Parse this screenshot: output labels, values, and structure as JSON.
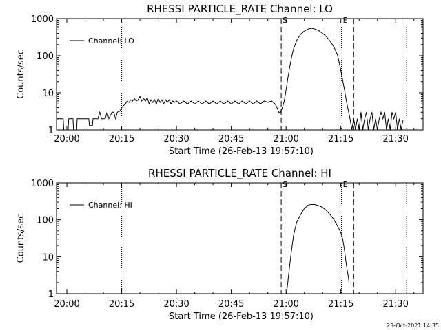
{
  "timestamp": "23-Oct-2021 14:35",
  "chart_data": [
    {
      "type": "line",
      "title": "RHESSI PARTICLE_RATE Channel: LO",
      "xlabel": "Start Time (26-Feb-13 19:57:10)",
      "ylabel": "Counts/sec",
      "y_scale": "log",
      "ylim": [
        1,
        1000
      ],
      "xlim": [
        "19:57:10",
        "21:37:30"
      ],
      "x_ticks": [
        "20:00",
        "20:15",
        "20:30",
        "20:45",
        "21:00",
        "21:15",
        "21:30"
      ],
      "y_ticks": [
        "1",
        "10",
        "100",
        "1000"
      ],
      "legend": "top-left",
      "grid": false,
      "series": [
        {
          "name": "Channel: LO",
          "color": "#000000",
          "points": [
            [
              "19:57:10",
              2
            ],
            [
              "19:59:00",
              2
            ],
            [
              "19:59:10",
              1
            ],
            [
              "20:00:20",
              1
            ],
            [
              "20:00:30",
              2
            ],
            [
              "20:01:40",
              2
            ],
            [
              "20:01:50",
              1
            ],
            [
              "20:02:40",
              1
            ],
            [
              "20:02:50",
              2
            ],
            [
              "20:05:30",
              2
            ],
            [
              "20:06:00",
              2
            ],
            [
              "20:06:10",
              1.3
            ],
            [
              "20:07:00",
              1.3
            ],
            [
              "20:07:10",
              2
            ],
            [
              "20:08:30",
              2
            ],
            [
              "20:09:00",
              3
            ],
            [
              "20:09:30",
              2
            ],
            [
              "20:10:30",
              2
            ],
            [
              "20:11:00",
              3
            ],
            [
              "20:11:30",
              2
            ],
            [
              "20:12:20",
              3
            ],
            [
              "20:12:50",
              3
            ],
            [
              "20:13:20",
              2
            ],
            [
              "20:13:50",
              3
            ],
            [
              "20:14:30",
              3.2
            ],
            [
              "20:15:00",
              4
            ],
            [
              "20:15:30",
              4.5
            ],
            [
              "20:16:00",
              5
            ],
            [
              "20:16:30",
              6
            ],
            [
              "20:17:00",
              5.5
            ],
            [
              "20:17:30",
              6.5
            ],
            [
              "20:18:00",
              6
            ],
            [
              "20:18:30",
              7
            ],
            [
              "20:19:00",
              6
            ],
            [
              "20:19:30",
              6.5
            ],
            [
              "20:20:00",
              8
            ],
            [
              "20:20:30",
              6
            ],
            [
              "20:21:00",
              7
            ],
            [
              "20:21:30",
              6
            ],
            [
              "20:22:00",
              7.5
            ],
            [
              "20:22:30",
              5
            ],
            [
              "20:23:00",
              6.5
            ],
            [
              "20:23:30",
              5.5
            ],
            [
              "20:24:00",
              6.5
            ],
            [
              "20:24:30",
              5
            ],
            [
              "20:25:00",
              7
            ],
            [
              "20:25:30",
              5.5
            ],
            [
              "20:26:00",
              6.5
            ],
            [
              "20:26:30",
              5
            ],
            [
              "20:27:00",
              6.5
            ],
            [
              "20:27:30",
              5.5
            ],
            [
              "20:28:00",
              6.5
            ],
            [
              "20:28:30",
              5
            ],
            [
              "20:29:00",
              6
            ],
            [
              "20:29:30",
              5.5
            ],
            [
              "20:30:00",
              6
            ],
            [
              "20:31:00",
              5
            ],
            [
              "20:32:00",
              6
            ],
            [
              "20:33:00",
              5
            ],
            [
              "20:34:00",
              6
            ],
            [
              "20:35:00",
              5
            ],
            [
              "20:36:00",
              6
            ],
            [
              "20:37:00",
              5
            ],
            [
              "20:38:00",
              6
            ],
            [
              "20:39:00",
              5
            ],
            [
              "20:40:00",
              6
            ],
            [
              "20:41:00",
              5
            ],
            [
              "20:42:00",
              6
            ],
            [
              "20:43:00",
              5
            ],
            [
              "20:44:00",
              6
            ],
            [
              "20:45:00",
              5
            ],
            [
              "20:46:00",
              6
            ],
            [
              "20:47:00",
              5
            ],
            [
              "20:48:00",
              6
            ],
            [
              "20:49:00",
              5
            ],
            [
              "20:50:00",
              6
            ],
            [
              "20:51:00",
              5
            ],
            [
              "20:52:00",
              6
            ],
            [
              "20:53:00",
              5
            ],
            [
              "20:54:00",
              6
            ],
            [
              "20:55:00",
              5.5
            ],
            [
              "20:56:00",
              6
            ],
            [
              "20:57:00",
              5
            ],
            [
              "20:57:30",
              4
            ],
            [
              "20:58:00",
              3
            ],
            [
              "20:58:30",
              3
            ],
            [
              "20:59:00",
              4
            ],
            [
              "20:59:30",
              6
            ],
            [
              "21:00:00",
              12
            ],
            [
              "21:00:30",
              25
            ],
            [
              "21:01:00",
              50
            ],
            [
              "21:01:30",
              90
            ],
            [
              "21:02:00",
              150
            ],
            [
              "21:03:00",
              270
            ],
            [
              "21:04:00",
              380
            ],
            [
              "21:05:00",
              460
            ],
            [
              "21:06:00",
              520
            ],
            [
              "21:07:00",
              550
            ],
            [
              "21:08:00",
              520
            ],
            [
              "21:09:00",
              470
            ],
            [
              "21:10:00",
              400
            ],
            [
              "21:11:00",
              330
            ],
            [
              "21:12:00",
              250
            ],
            [
              "21:13:00",
              180
            ],
            [
              "21:14:00",
              110
            ],
            [
              "21:14:30",
              70
            ],
            [
              "21:15:00",
              40
            ],
            [
              "21:15:30",
              22
            ],
            [
              "21:16:00",
              12
            ],
            [
              "21:16:30",
              6
            ],
            [
              "21:17:00",
              3.5
            ],
            [
              "21:17:30",
              2
            ],
            [
              "21:18:00",
              1
            ],
            [
              "21:18:30",
              2
            ],
            [
              "21:19:00",
              1
            ],
            [
              "21:19:30",
              2
            ],
            [
              "21:20:00",
              1
            ],
            [
              "21:20:30",
              3
            ],
            [
              "21:21:00",
              1
            ],
            [
              "21:21:30",
              2
            ],
            [
              "21:22:00",
              3
            ],
            [
              "21:22:30",
              1
            ],
            [
              "21:23:00",
              2
            ],
            [
              "21:23:30",
              3
            ],
            [
              "21:24:00",
              1
            ],
            [
              "21:24:30",
              2
            ],
            [
              "21:25:00",
              1
            ],
            [
              "21:25:30",
              2
            ],
            [
              "21:26:00",
              3
            ],
            [
              "21:26:30",
              2
            ],
            [
              "21:27:00",
              3
            ],
            [
              "21:27:30",
              1
            ],
            [
              "21:28:00",
              2
            ],
            [
              "21:28:30",
              1
            ],
            [
              "21:29:00",
              3
            ],
            [
              "21:29:30",
              2
            ],
            [
              "21:30:00",
              3
            ],
            [
              "21:30:30",
              1
            ],
            [
              "21:31:00",
              2
            ],
            [
              "21:31:30",
              1
            ],
            [
              "21:32:00",
              1.8
            ]
          ]
        }
      ],
      "markers": [
        {
          "time": "20:15:00",
          "label": "",
          "style": "dotted"
        },
        {
          "time": "20:58:40",
          "label": "S",
          "style": "dashed"
        },
        {
          "time": "21:15:10",
          "label": "E",
          "style": "dotted"
        },
        {
          "time": "21:18:30",
          "label": "",
          "style": "dashed"
        },
        {
          "time": "21:33:00",
          "label": "",
          "style": "dotted"
        }
      ]
    },
    {
      "type": "line",
      "title": "RHESSI PARTICLE_RATE Channel: HI",
      "xlabel": "Start Time (26-Feb-13 19:57:10)",
      "ylabel": "Counts/sec",
      "y_scale": "log",
      "ylim": [
        1,
        1000
      ],
      "xlim": [
        "19:57:10",
        "21:37:30"
      ],
      "x_ticks": [
        "20:00",
        "20:15",
        "20:30",
        "20:45",
        "21:00",
        "21:15",
        "21:30"
      ],
      "y_ticks": [
        "1",
        "10",
        "100",
        "1000"
      ],
      "legend": "top-left",
      "grid": false,
      "series": [
        {
          "name": "Channel: HI",
          "color": "#000000",
          "points": [
            [
              "21:00:10",
              1
            ],
            [
              "21:00:20",
              1.5
            ],
            [
              "21:00:40",
              3
            ],
            [
              "21:01:00",
              6
            ],
            [
              "21:01:30",
              15
            ],
            [
              "21:02:00",
              35
            ],
            [
              "21:02:30",
              60
            ],
            [
              "21:03:00",
              90
            ],
            [
              "21:04:00",
              140
            ],
            [
              "21:05:00",
              200
            ],
            [
              "21:06:00",
              250
            ],
            [
              "21:07:00",
              260
            ],
            [
              "21:08:00",
              255
            ],
            [
              "21:09:00",
              240
            ],
            [
              "21:10:00",
              215
            ],
            [
              "21:11:00",
              180
            ],
            [
              "21:12:00",
              140
            ],
            [
              "21:13:00",
              105
            ],
            [
              "21:14:00",
              70
            ],
            [
              "21:15:00",
              45
            ],
            [
              "21:15:30",
              30
            ],
            [
              "21:16:00",
              15
            ],
            [
              "21:16:30",
              6
            ],
            [
              "21:17:00",
              3
            ],
            [
              "21:17:15",
              2
            ]
          ]
        }
      ],
      "markers": [
        {
          "time": "20:15:00",
          "label": "",
          "style": "dotted"
        },
        {
          "time": "20:58:40",
          "label": "S",
          "style": "dashed"
        },
        {
          "time": "21:15:10",
          "label": "E",
          "style": "dotted"
        },
        {
          "time": "21:18:30",
          "label": "",
          "style": "dashed"
        },
        {
          "time": "21:33:00",
          "label": "",
          "style": "dotted"
        }
      ]
    }
  ]
}
